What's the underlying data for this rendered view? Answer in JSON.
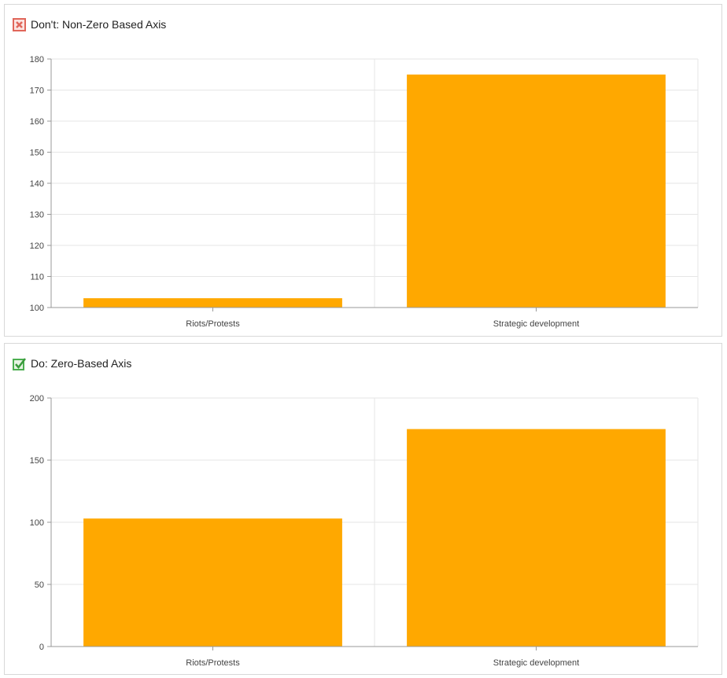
{
  "colors": {
    "bar": "#FFA800",
    "grid": "#e6e6e6",
    "axis": "#999999",
    "bad_icon": "#e0665a",
    "good_icon": "#4caf50"
  },
  "panels": [
    {
      "icon": "x-box-icon",
      "title": "Don't: Non-Zero Based Axis"
    },
    {
      "icon": "check-box-icon",
      "title": "Do: Zero-Based Axis"
    }
  ],
  "chart_data": [
    {
      "type": "bar",
      "title": "Don't: Non-Zero Based Axis",
      "categories": [
        "Riots/Protests",
        "Strategic development"
      ],
      "values": [
        103,
        175
      ],
      "ylim": [
        100,
        180
      ],
      "yticks": [
        100,
        110,
        120,
        130,
        140,
        150,
        160,
        170,
        180
      ],
      "grid": true,
      "xlabel": "",
      "ylabel": ""
    },
    {
      "type": "bar",
      "title": "Do: Zero-Based Axis",
      "categories": [
        "Riots/Protests",
        "Strategic development"
      ],
      "values": [
        103,
        175
      ],
      "ylim": [
        0,
        200
      ],
      "yticks": [
        0,
        50,
        100,
        150,
        200
      ],
      "grid": true,
      "xlabel": "",
      "ylabel": ""
    }
  ]
}
